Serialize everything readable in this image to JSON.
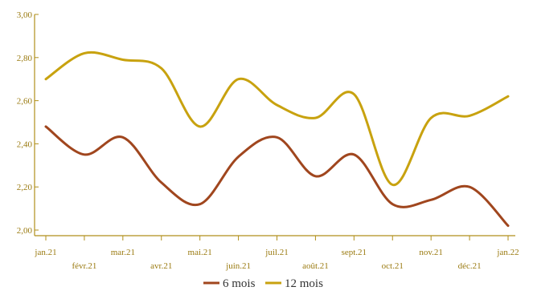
{
  "chart_data": {
    "type": "line",
    "categories": [
      "jan.21",
      "févr.21",
      "mar.21",
      "avr.21",
      "mai.21",
      "juin.21",
      "juil.21",
      "août.21",
      "sept.21",
      "oct.21",
      "nov.21",
      "déc.21",
      "jan.22"
    ],
    "series": [
      {
        "name": "6 mois",
        "color": "#a0461e",
        "values": [
          2.48,
          2.35,
          2.43,
          2.22,
          2.12,
          2.34,
          2.43,
          2.25,
          2.35,
          2.12,
          2.14,
          2.2,
          2.02
        ]
      },
      {
        "name": "12 mois",
        "color": "#c8a20f",
        "values": [
          2.7,
          2.82,
          2.79,
          2.75,
          2.48,
          2.7,
          2.58,
          2.52,
          2.63,
          2.21,
          2.52,
          2.53,
          2.62
        ]
      }
    ],
    "ylim": [
      2.0,
      3.0
    ],
    "yticks": [
      "2,00",
      "2,20",
      "2,40",
      "2,60",
      "2,80",
      "3,00"
    ],
    "grid": false,
    "legend_position": "bottom-center",
    "axis_color": "#b08f1a"
  }
}
